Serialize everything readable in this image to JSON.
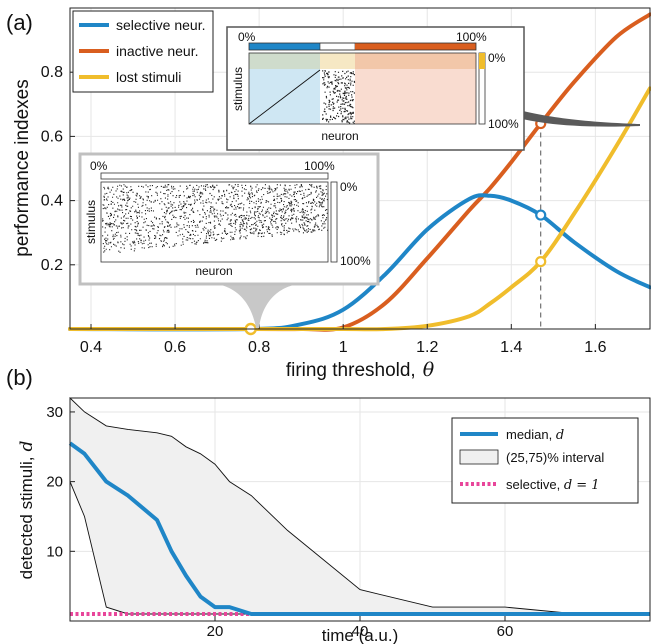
{
  "panel_a": {
    "panel_label": "(a)",
    "insets": {
      "top": {
        "pct_start": "0%",
        "pct_end": "100%",
        "side_top": "0%",
        "side_bottom": "100%",
        "xlabel": "neuron",
        "ylabel": "stimulus"
      },
      "bottom": {
        "pct_start": "0%",
        "pct_end": "100%",
        "side_top": "0%",
        "side_bottom": "100%",
        "xlabel": "neuron",
        "ylabel": "stimulus"
      }
    }
  },
  "panel_b": {
    "panel_label": "(b)",
    "legend": {
      "median_label": "median, ",
      "median_math": "d",
      "interval_label": "(25,75)% interval",
      "selective_label": "selective, ",
      "selective_math": "d = 1"
    }
  },
  "colors": {
    "selective": "#1f86c7",
    "inactive": "#d95e1f",
    "lost": "#f0bd2c",
    "selective_dotted": "#e8459a",
    "band_fill": "#f0f0f0"
  },
  "chart_data": [
    {
      "type": "line",
      "xlabel": "firing threshold,",
      "xlabel_math": "θ",
      "ylabel": "performance indexes",
      "xlim": [
        0.35,
        1.73
      ],
      "ylim": [
        0,
        1.0
      ],
      "xticks": [
        "0.4",
        "0.6",
        "0.8",
        "1",
        "1.2",
        "1.4",
        "1.6"
      ],
      "xtick_values": [
        0.4,
        0.6,
        0.8,
        1.0,
        1.2,
        1.4,
        1.6
      ],
      "yticks": [
        "0.2",
        "0.4",
        "0.6",
        "0.8"
      ],
      "ytick_values": [
        0.2,
        0.4,
        0.6,
        0.8
      ],
      "legend_position": "top-left",
      "x": [
        0.35,
        0.78,
        0.9,
        1.0,
        1.1,
        1.2,
        1.3,
        1.35,
        1.4,
        1.47,
        1.55,
        1.65,
        1.73
      ],
      "series": [
        {
          "name": "selective neur.",
          "values": [
            0,
            0,
            0.015,
            0.06,
            0.17,
            0.31,
            0.405,
            0.415,
            0.4,
            0.355,
            0.27,
            0.18,
            0.13
          ]
        },
        {
          "name": "inactive neur.",
          "values": [
            0,
            0,
            0,
            0.005,
            0.08,
            0.22,
            0.37,
            0.44,
            0.52,
            0.64,
            0.77,
            0.91,
            0.98
          ]
        },
        {
          "name": "lost stimuli",
          "values": [
            0,
            0,
            0,
            0,
            0,
            0.01,
            0.04,
            0.08,
            0.13,
            0.21,
            0.36,
            0.57,
            0.75
          ]
        }
      ],
      "highlight_x": [
        0.78,
        1.47
      ]
    },
    {
      "type": "line",
      "xlabel": "time (a.u.)",
      "ylabel": "detected stimuli,",
      "ylabel_math": "d",
      "xlim": [
        0,
        80
      ],
      "ylim": [
        0,
        32
      ],
      "xticks": [
        "20",
        "40",
        "60"
      ],
      "xtick_values": [
        20,
        40,
        60
      ],
      "yticks": [
        "10",
        "20",
        "30"
      ],
      "ytick_values": [
        10,
        20,
        30
      ],
      "legend_position": "top-right",
      "x": [
        0,
        2,
        5,
        8,
        12,
        14,
        16,
        18,
        20,
        22,
        25,
        30,
        40,
        50,
        60,
        70,
        80
      ],
      "series": [
        {
          "name": "median",
          "values": [
            25.5,
            24,
            20,
            18,
            14.5,
            10,
            6.5,
            3.5,
            2,
            2,
            1,
            1,
            1,
            1,
            1,
            1,
            1
          ]
        },
        {
          "name": "(25,75)% interval",
          "lower": [
            20,
            15,
            2,
            1,
            1,
            1,
            1,
            1,
            1,
            1,
            1,
            1,
            1,
            1,
            1,
            1,
            1
          ],
          "upper": [
            32,
            30,
            28,
            27.5,
            27,
            26.5,
            25,
            24,
            22.5,
            20,
            18,
            13,
            4.5,
            2,
            2,
            1,
            1
          ]
        },
        {
          "name": "selective",
          "values": [
            1,
            1,
            1,
            1,
            1,
            1,
            1,
            1,
            1,
            1,
            1,
            1,
            1,
            1,
            1,
            1,
            1
          ]
        }
      ]
    }
  ]
}
